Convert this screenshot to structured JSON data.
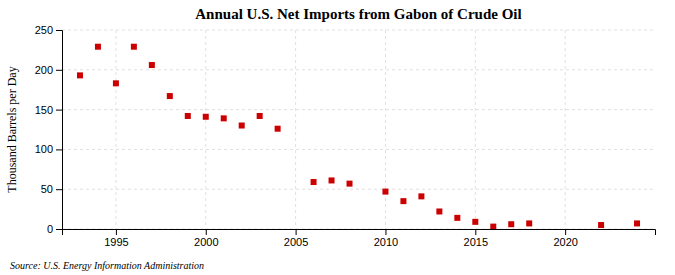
{
  "chart_data": {
    "type": "scatter",
    "title": "Annual U.S. Net Imports from Gabon of Crude Oil",
    "ylabel": "Thousand Barrels per Day",
    "annotations": [
      "Source: U.S. Energy Information Administration"
    ],
    "x": [
      1993,
      1994,
      1995,
      1996,
      1997,
      1998,
      1999,
      2000,
      2001,
      2002,
      2003,
      2004,
      2006,
      2007,
      2008,
      2010,
      2011,
      2012,
      2013,
      2014,
      2015,
      2016,
      2017,
      2018,
      2022,
      2024
    ],
    "values": [
      193,
      229,
      183,
      229,
      206,
      167,
      142,
      141,
      139,
      130,
      142,
      126,
      59,
      61,
      57,
      47,
      35,
      41,
      22,
      14,
      9,
      3,
      6,
      7,
      5,
      7
    ],
    "color": "#CC0000",
    "marker": "square",
    "xlim": [
      1992,
      2025
    ],
    "ylim": [
      0,
      250
    ],
    "xticks": [
      1995,
      2000,
      2005,
      2010,
      2015,
      2020
    ],
    "yticks": [
      0,
      50,
      100,
      150,
      200,
      250
    ],
    "grid": true
  }
}
